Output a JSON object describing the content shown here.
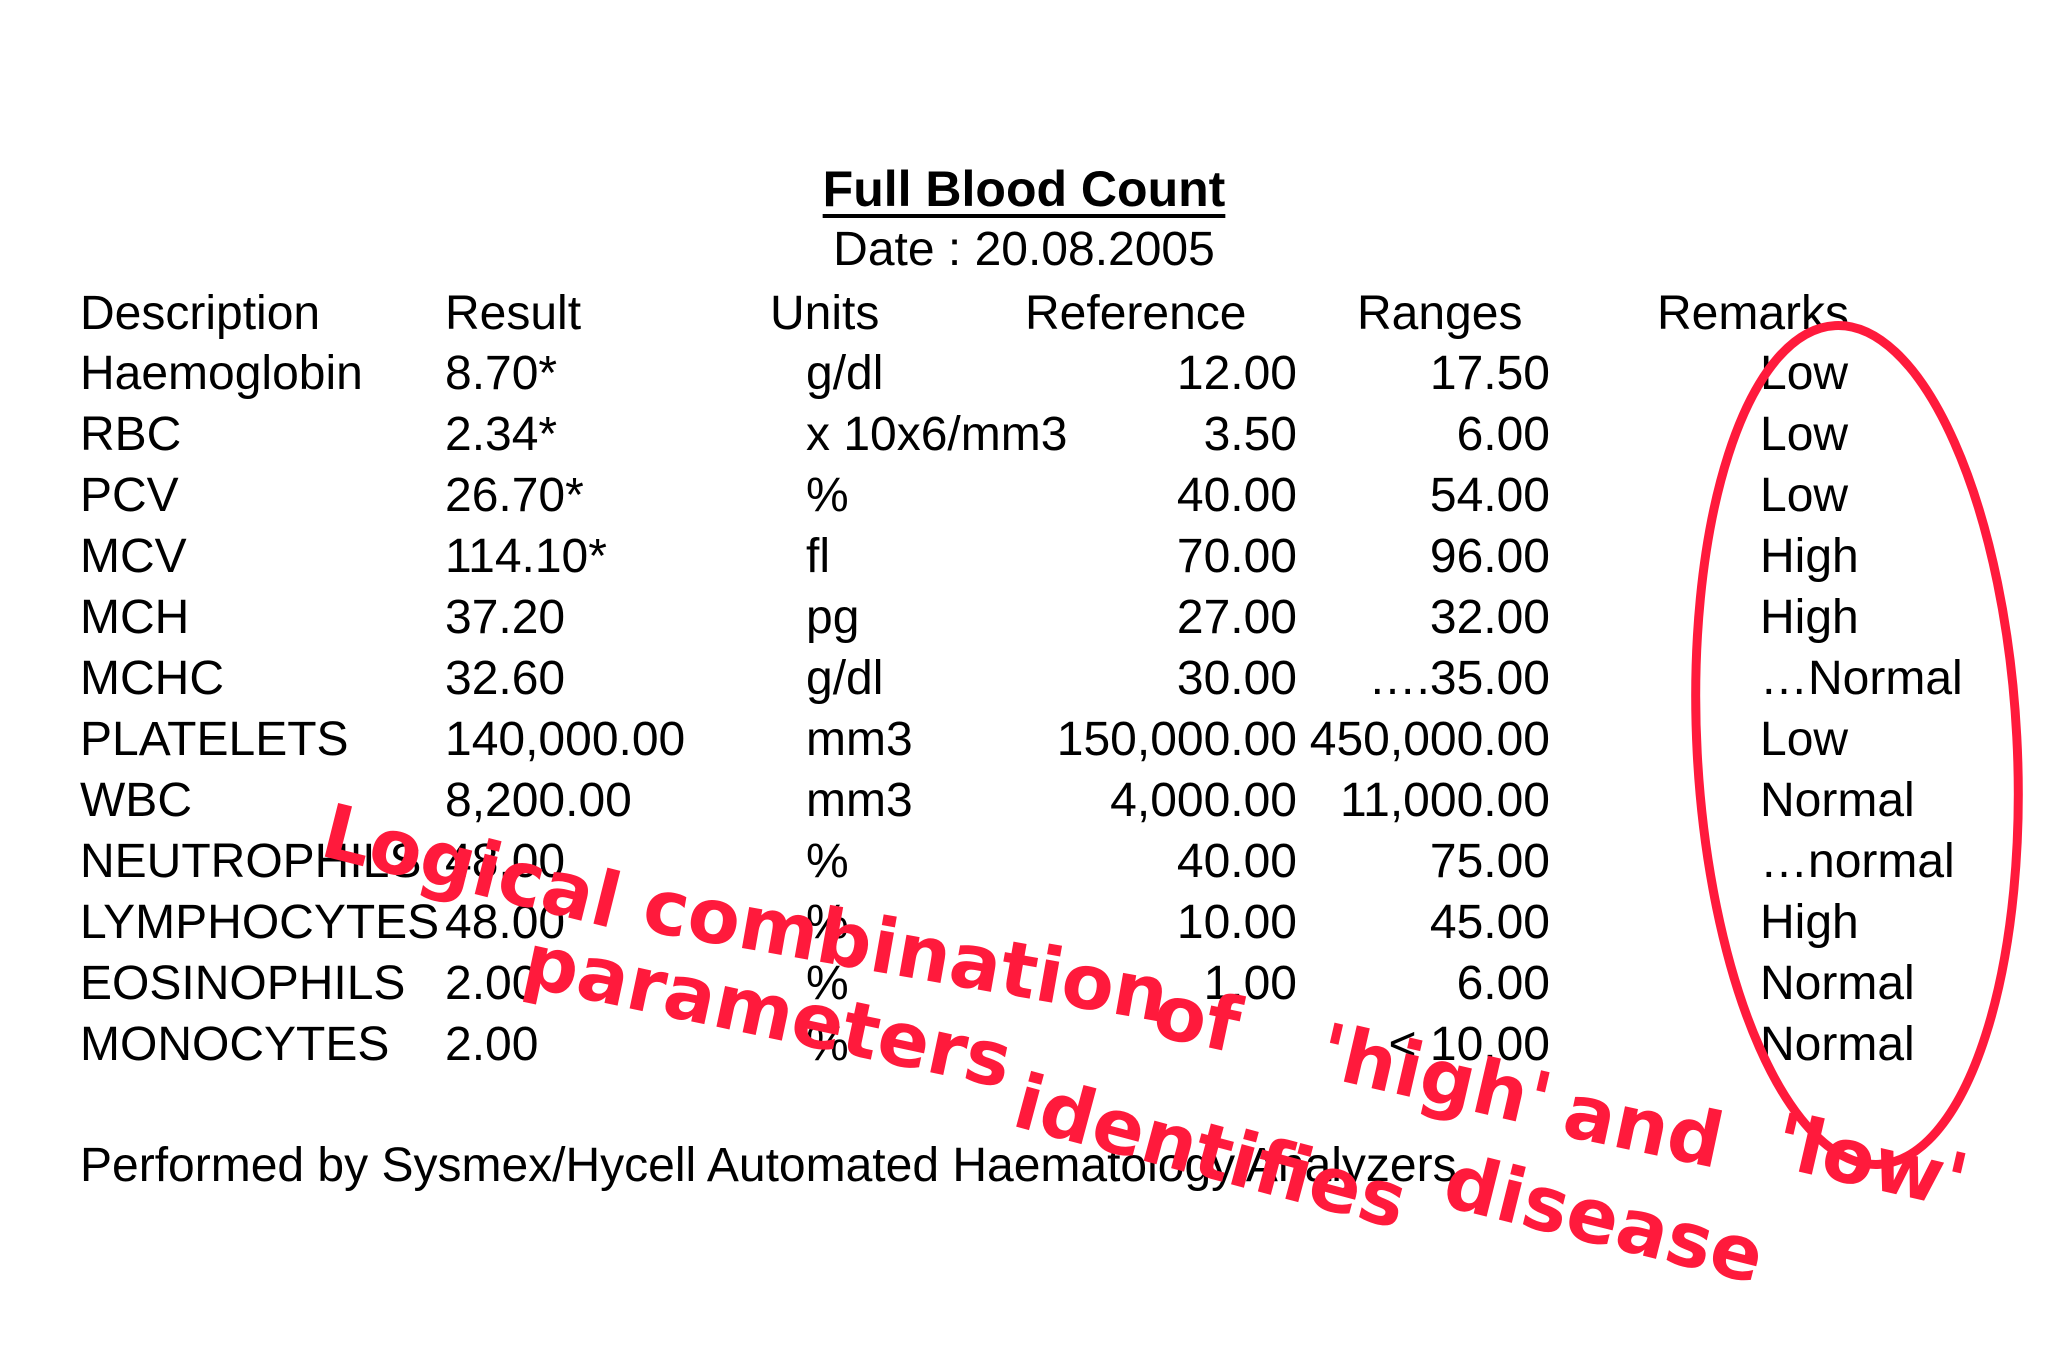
{
  "report": {
    "title": "Full Blood Count",
    "date": "Date : 20.08.2005",
    "headers": {
      "description": "Description",
      "result": "Result",
      "units": "Units",
      "reference": "Reference",
      "ranges": "Ranges",
      "remarks": "Remarks"
    },
    "rows": [
      {
        "desc": "Haemoglobin",
        "result": "8.70*",
        "units": "g/dl",
        "ref": "12.00",
        "range": "17.50",
        "remark": "Low"
      },
      {
        "desc": "RBC",
        "result": "2.34*",
        "units": "x 10x6/mm3",
        "ref": "3.50",
        "range": "6.00",
        "remark": "Low"
      },
      {
        "desc": "PCV",
        "result": "26.70*",
        "units": "%",
        "ref": "40.00",
        "range": "54.00",
        "remark": "Low"
      },
      {
        "desc": "MCV",
        "result": "114.10*",
        "units": "fl",
        "ref": "70.00",
        "range": "96.00",
        "remark": "High"
      },
      {
        "desc": "MCH",
        "result": "37.20",
        "units": "pg",
        "ref": "27.00",
        "range": "32.00",
        "remark": "High"
      },
      {
        "desc": "MCHC",
        "result": "32.60",
        "units": "g/dl",
        "ref": "30.00",
        "range": "….35.00",
        "remark": "…Normal"
      },
      {
        "desc": "PLATELETS",
        "result": "140,000.00",
        "units": "mm3",
        "ref": "150,000.00",
        "range": "450,000.00",
        "remark": "Low"
      },
      {
        "desc": "WBC",
        "result": "8,200.00",
        "units": "mm3",
        "ref": "4,000.00",
        "range": "11,000.00",
        "remark": "Normal"
      },
      {
        "desc": "NEUTROPHILS",
        "result": "48.00",
        "units": "%",
        "ref": "40.00",
        "range": "75.00",
        "remark": "…normal"
      },
      {
        "desc": "LYMPHOCYTES",
        "result": "48.00",
        "units": "%",
        "ref": "10.00",
        "range": "45.00",
        "remark": "High"
      },
      {
        "desc": "EOSINOPHILS",
        "result": "2.00",
        "units": "%",
        "ref": "1.00",
        "range": "6.00",
        "remark": "Normal"
      },
      {
        "desc": "MONOCYTES",
        "result": "2.00",
        "units": "%",
        "ref": "",
        "range": "< 10.00",
        "remark": "Normal"
      }
    ],
    "footer": "Performed by Sysmex/Hycell Automated Haematology Analyzers"
  },
  "annotation": {
    "color": "#ff1a3c",
    "words": [
      "Logical",
      "combination",
      "of",
      "'high'",
      "and",
      "'low'",
      "parameters",
      "identifies",
      "disease"
    ]
  }
}
